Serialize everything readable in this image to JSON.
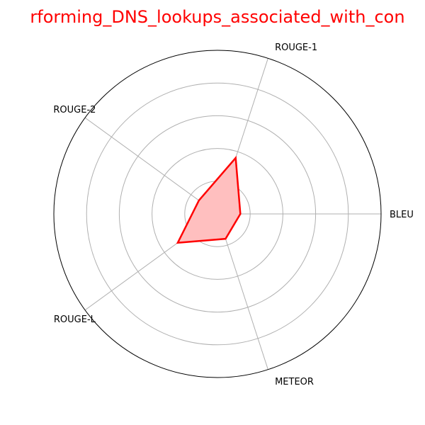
{
  "chart_data": {
    "type": "radar",
    "title": "rforming_DNS_lookups_associated_with_con",
    "categories": [
      "BLEU",
      "ROUGE-1",
      "ROUGE-2",
      "ROUGE-L",
      "METEOR"
    ],
    "series": [
      {
        "values": [
          0.07,
          0.18,
          0.07,
          0.15,
          0.08
        ]
      }
    ],
    "rlim": [
      0,
      0.5
    ],
    "ring_count": 5,
    "grid": true,
    "colors": {
      "title": "#ff0000",
      "series_line": "#ff0000",
      "series_fill": "#ffbfbf",
      "grid": "#b0b0b0",
      "outer_ring": "#000000"
    }
  }
}
